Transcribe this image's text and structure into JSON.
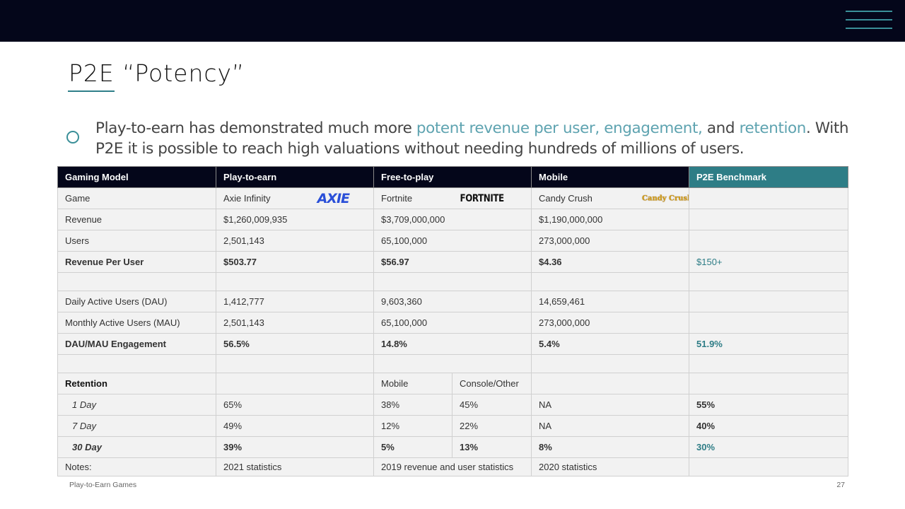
{
  "slide": {
    "title": "P2E “Potency”",
    "lead": {
      "t1": "Play-to-earn has demonstrated much more ",
      "h1": "potent revenue per user, engagement,",
      "t2": " and ",
      "h2": "retention",
      "t3": ". With P2E it is possible to reach high valuations without needing hundreds of millions of users."
    },
    "footer": {
      "label": "Play-to-Earn Games",
      "page": "27"
    }
  },
  "table": {
    "headers": [
      "Gaming Model",
      "Play-to-earn",
      "Free-to-play",
      "Mobile",
      "P2E Benchmark"
    ],
    "logos": {
      "axie": "AXIE",
      "fortnite": "FORTNITE",
      "candy": "Candy Crush"
    },
    "rows": {
      "game": [
        "Game",
        "Axie Infinity",
        "Fortnite",
        "Candy Crush",
        ""
      ],
      "revenue": [
        "Revenue",
        "$1,260,009,935",
        "$3,709,000,000",
        "$1,190,000,000",
        ""
      ],
      "users": [
        "Users",
        "2,501,143",
        "65,100,000",
        "273,000,000",
        ""
      ],
      "rpu": [
        "Revenue Per User",
        "$503.77",
        "$56.97",
        "$4.36",
        "$150+"
      ],
      "dau": [
        "Daily Active Users (DAU)",
        "1,412,777",
        "9,603,360",
        "14,659,461",
        ""
      ],
      "mau": [
        "Monthly Active Users (MAU)",
        "2,501,143",
        "65,100,000",
        "273,000,000",
        ""
      ],
      "engagement": [
        "DAU/MAU Engagement",
        "56.5%",
        "14.8%",
        "5.4%",
        "51.9%"
      ],
      "retention": [
        "Retention",
        "",
        "Mobile",
        "Console/Other",
        "",
        ""
      ],
      "day1": [
        "1 Day",
        "65%",
        "38%",
        "45%",
        "NA",
        "55%"
      ],
      "day7": [
        "7 Day",
        "49%",
        "12%",
        "22%",
        "NA",
        "40%"
      ],
      "day30": [
        "30 Day",
        "39%",
        "5%",
        "13%",
        "8%",
        "30%"
      ],
      "notes": [
        "Notes:",
        "2021 statistics",
        "2019 revenue and user statistics",
        "2020 statistics",
        ""
      ]
    }
  },
  "colors": {
    "header_bg": "#04061a",
    "accent": "#2e7d86",
    "highlight_text": "#5ea3b0"
  }
}
